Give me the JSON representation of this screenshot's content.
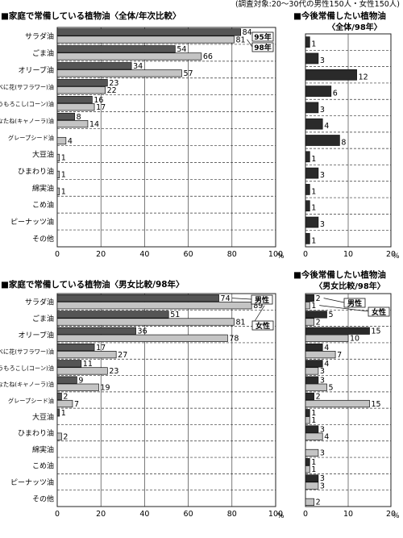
{
  "survey_note": "(調査対象:20～30代の男性150人・女性150人)",
  "colors": {
    "dark": "#555555",
    "light": "#c4c4c4",
    "rdark": "#2a2a2a",
    "rlight": "#c4c4c4"
  },
  "chart_data": [
    {
      "type": "bar",
      "title": "■家庭で常備している植物油〈全体/年次比較〉",
      "categories": [
        "サラダ油",
        "ごま油",
        "オリーブ油",
        "べに花(サフラワー)油",
        "とうもろこし(コーン)油",
        "なたね(キャノーラ)油",
        "グレープシード油",
        "大豆油",
        "ひまわり油",
        "綿実油",
        "こめ油",
        "ピーナッツ油",
        "その他"
      ],
      "series": [
        {
          "name": "95年",
          "values": [
            84,
            54,
            34,
            23,
            16,
            8,
            null,
            null,
            null,
            null,
            null,
            null,
            null
          ]
        },
        {
          "name": "98年",
          "values": [
            81,
            66,
            57,
            22,
            17,
            14,
            4,
            1,
            1,
            1,
            null,
            null,
            null
          ]
        }
      ],
      "ticks": [
        "0",
        "20",
        "40",
        "60",
        "80",
        "100"
      ],
      "xlim": [
        0,
        100
      ],
      "unit": "%"
    },
    {
      "type": "bar",
      "title": "■今後常備したい植物油",
      "subtitle": "〈全体/98年〉",
      "categories": [
        "サラダ油",
        "ごま油",
        "オリーブ油",
        "べに花(サフラワー)油",
        "とうもろこし(コーン)油",
        "なたね(キャノーラ)油",
        "グレープシード油",
        "大豆油",
        "ひまわり油",
        "綿実油",
        "こめ油",
        "ピーナッツ油",
        "その他"
      ],
      "series": [
        {
          "values": [
            1,
            3,
            12,
            6,
            3,
            4,
            8,
            1,
            3,
            1,
            1,
            3,
            1
          ]
        }
      ],
      "ticks": [
        "0",
        "10",
        "20"
      ],
      "xlim": [
        0,
        20
      ],
      "unit": "%"
    },
    {
      "type": "bar",
      "title": "■家庭で常備している植物油〈男女比較/98年〉",
      "categories": [
        "サラダ油",
        "ごま油",
        "オリーブ油",
        "べに花(サフラワー)油",
        "とうもろこし(コーン)油",
        "なたね(キャノーラ)油",
        "グレープシード油",
        "大豆油",
        "ひまわり油",
        "綿実油",
        "こめ油",
        "ピーナッツ油",
        "その他"
      ],
      "series": [
        {
          "name": "男性",
          "values": [
            74,
            51,
            36,
            17,
            11,
            9,
            2,
            1,
            null,
            null,
            null,
            null,
            null
          ]
        },
        {
          "name": "女性",
          "values": [
            89,
            81,
            78,
            27,
            23,
            19,
            7,
            null,
            2,
            null,
            null,
            null,
            null
          ]
        }
      ],
      "ticks": [
        "0",
        "20",
        "40",
        "60",
        "80",
        "100"
      ],
      "xlim": [
        0,
        100
      ],
      "unit": "%"
    },
    {
      "type": "bar",
      "title": "■今後常備したい植物油",
      "subtitle": "〈男女比較/98年〉",
      "categories": [
        "サラダ油",
        "ごま油",
        "オリーブ油",
        "べに花(サフラワー)油",
        "とうもろこし(コーン)油",
        "なたね(キャノーラ)油",
        "グレープシード油",
        "大豆油",
        "ひまわり油",
        "綿実油",
        "こめ油",
        "ピーナッツ油",
        "その他"
      ],
      "series": [
        {
          "name": "男性",
          "values": [
            2,
            5,
            15,
            4,
            4,
            3,
            2,
            1,
            3,
            null,
            1,
            3,
            null
          ]
        },
        {
          "name": "女性",
          "values": [
            1,
            2,
            10,
            7,
            3,
            5,
            15,
            1,
            4,
            3,
            1,
            3,
            2
          ]
        }
      ],
      "ticks": [
        "0",
        "10",
        "20"
      ],
      "xlim": [
        0,
        20
      ],
      "unit": "%"
    }
  ]
}
